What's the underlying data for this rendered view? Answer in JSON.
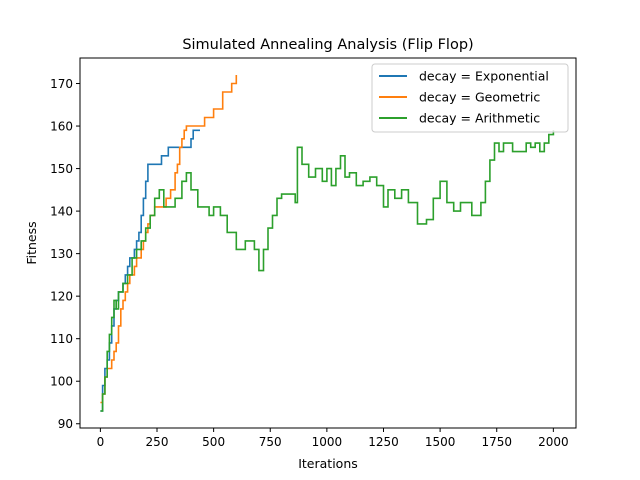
{
  "chart_data": {
    "type": "line",
    "title": "Simulated Annealing Analysis (Flip Flop)",
    "xlabel": "Iterations",
    "ylabel": "Fitness",
    "xlim": [
      -90,
      2100
    ],
    "ylim": [
      89,
      176
    ],
    "xticks": [
      0,
      250,
      500,
      750,
      1000,
      1250,
      1500,
      1750,
      2000
    ],
    "yticks": [
      90,
      100,
      110,
      120,
      130,
      140,
      150,
      160,
      170
    ],
    "legend_position": "top-right",
    "grid": false,
    "series": [
      {
        "name": "decay = Exponential",
        "color": "#1f77b4",
        "x": [
          0,
          10,
          20,
          30,
          40,
          50,
          60,
          70,
          80,
          90,
          100,
          110,
          120,
          130,
          140,
          150,
          160,
          170,
          180,
          190,
          200,
          210,
          220,
          230,
          240,
          250,
          260,
          270,
          280,
          290,
          300,
          310,
          320,
          330,
          340,
          350,
          360,
          370,
          380,
          390,
          400,
          410,
          420,
          430,
          440
        ],
        "values": [
          93,
          99,
          103,
          105,
          109,
          113,
          117,
          119,
          121,
          121,
          123,
          125,
          127,
          129,
          129,
          131,
          133,
          135,
          139,
          143,
          147,
          151,
          151,
          151,
          151,
          151,
          151,
          153,
          153,
          153,
          155,
          155,
          155,
          155,
          155,
          155,
          155,
          155,
          155,
          155,
          157,
          159,
          159,
          159,
          159
        ]
      },
      {
        "name": "decay = Geometric",
        "color": "#ff7f0e",
        "x": [
          0,
          10,
          20,
          30,
          40,
          50,
          60,
          70,
          80,
          90,
          100,
          110,
          120,
          130,
          140,
          150,
          160,
          170,
          180,
          190,
          200,
          210,
          220,
          230,
          240,
          250,
          260,
          270,
          280,
          290,
          300,
          310,
          320,
          330,
          340,
          350,
          360,
          370,
          380,
          390,
          400,
          420,
          440,
          460,
          480,
          500,
          520,
          540,
          560,
          580,
          600
        ],
        "values": [
          95,
          97,
          101,
          103,
          103,
          105,
          107,
          109,
          113,
          117,
          119,
          121,
          123,
          125,
          125,
          127,
          129,
          129,
          131,
          133,
          135,
          137,
          139,
          139,
          141,
          141,
          141,
          141,
          141,
          143,
          143,
          145,
          145,
          149,
          151,
          155,
          157,
          159,
          160,
          160,
          160,
          160,
          160,
          162,
          162,
          164,
          164,
          168,
          168,
          170,
          172
        ]
      },
      {
        "name": "decay = Arithmetic",
        "color": "#2ca02c",
        "x": [
          0,
          10,
          20,
          30,
          40,
          50,
          60,
          70,
          80,
          90,
          100,
          120,
          140,
          160,
          180,
          200,
          220,
          240,
          260,
          280,
          300,
          330,
          360,
          380,
          400,
          430,
          460,
          480,
          500,
          530,
          560,
          600,
          640,
          680,
          700,
          720,
          740,
          760,
          780,
          800,
          830,
          860,
          870,
          890,
          920,
          950,
          980,
          1000,
          1020,
          1040,
          1060,
          1080,
          1100,
          1130,
          1160,
          1190,
          1220,
          1250,
          1270,
          1300,
          1330,
          1360,
          1400,
          1440,
          1470,
          1500,
          1530,
          1560,
          1590,
          1620,
          1640,
          1660,
          1680,
          1700,
          1720,
          1740,
          1760,
          1780,
          1800,
          1820,
          1840,
          1860,
          1880,
          1900,
          1920,
          1940,
          1960,
          1980,
          2000
        ],
        "values": [
          93,
          97,
          101,
          107,
          111,
          115,
          119,
          117,
          121,
          121,
          123,
          125,
          129,
          131,
          133,
          136,
          139,
          143,
          145,
          141,
          141,
          143,
          147,
          149,
          145,
          141,
          141,
          139,
          141,
          139,
          135,
          131,
          133,
          131,
          126,
          131,
          136,
          139,
          143,
          144,
          144,
          142,
          155,
          151,
          148,
          150,
          147,
          150,
          146,
          150,
          153,
          148,
          149,
          146,
          147,
          148,
          146,
          141,
          145,
          143,
          145,
          142,
          137,
          138,
          143,
          147,
          142,
          140,
          142,
          142,
          139,
          139,
          142,
          147,
          152,
          156,
          154,
          156,
          156,
          154,
          154,
          154,
          156,
          155,
          156,
          154,
          156,
          158,
          159
        ]
      }
    ]
  }
}
